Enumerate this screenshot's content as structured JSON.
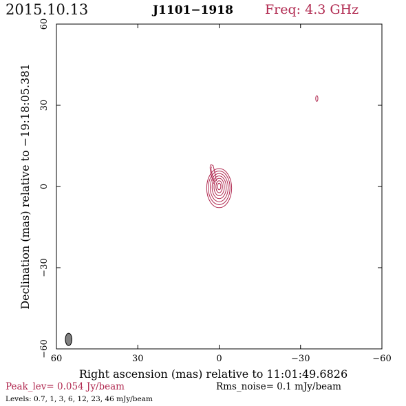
{
  "header": {
    "date": "2015.10.13",
    "source": "J1101−1918",
    "frequency": "Freq: 4.3 GHz"
  },
  "footer": {
    "peak": "Peak_lev=  0.054 Jy/beam",
    "rms": "Rms_noise=  0.1 mJy/beam",
    "levels": "Levels: 0.7,    1,    3,    6,   12,   23,   46 mJy/beam"
  },
  "colors": {
    "contour": "#b0284f",
    "beam": "#808080",
    "axis": "#000000"
  },
  "chart_data": {
    "type": "contour",
    "xlabel": "Right ascension (mas) relative to 11:01:49.6826",
    "ylabel": "Declination (mas) relative to −19:18:05.381",
    "xlim": [
      60,
      -60
    ],
    "ylim": [
      -60,
      60
    ],
    "xticks": [
      60,
      30,
      0,
      -30,
      -60
    ],
    "yticks": [
      -60,
      -30,
      0,
      30,
      60
    ],
    "xtick_labels": [
      "60",
      "30",
      "0",
      "−30",
      "−60"
    ],
    "ytick_labels": [
      "−60",
      "−30",
      "0",
      "30",
      "60"
    ],
    "contour_levels_mJy": [
      0.7,
      1,
      3,
      6,
      12,
      23,
      46
    ],
    "components": [
      {
        "name": "core",
        "x": 0.0,
        "y": 0.0
      },
      {
        "name": "jet-extension",
        "x": 2.0,
        "y": 5.5
      },
      {
        "name": "offset-blob",
        "x": -36.0,
        "y": 32.5
      }
    ],
    "beam": {
      "x": 55.5,
      "y": -56.5,
      "major_mas": 3.8,
      "minor_mas": 1.8,
      "pa_deg": 0
    }
  }
}
